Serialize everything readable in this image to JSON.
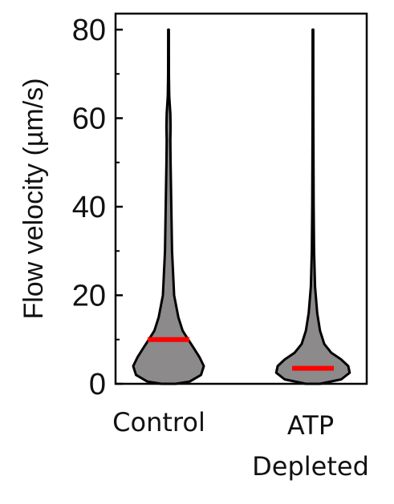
{
  "chart_data": {
    "type": "violin",
    "ylabel": "Flow velocity (µm/s)",
    "ylim": [
      0,
      80
    ],
    "yticks": [
      0,
      20,
      40,
      60,
      80
    ],
    "yticks_labels": [
      "0",
      "20",
      "40",
      "60",
      "80"
    ],
    "categories": [
      {
        "label_lines": [
          "Control"
        ]
      },
      {
        "label_lines": [
          "ATP",
          "Depleted"
        ]
      }
    ],
    "series": [
      {
        "median": 10,
        "max": 80,
        "profile": [
          [
            0,
            5.0
          ],
          [
            0.5,
            15.0
          ],
          [
            2,
            23.0
          ],
          [
            4,
            25.0
          ],
          [
            6,
            22.0
          ],
          [
            8,
            18.0
          ],
          [
            10,
            14.0
          ],
          [
            12,
            10.0
          ],
          [
            15,
            7.0
          ],
          [
            20,
            4.0
          ],
          [
            30,
            2.5
          ],
          [
            40,
            2.0
          ],
          [
            50,
            1.5
          ],
          [
            55,
            1.3
          ],
          [
            58,
            1.5
          ],
          [
            61,
            1.3
          ],
          [
            65,
            0.5
          ],
          [
            70,
            0.3
          ],
          [
            80,
            0.2
          ]
        ]
      },
      {
        "median": 3.5,
        "max": 80,
        "profile": [
          [
            0,
            5.0
          ],
          [
            1,
            20.0
          ],
          [
            2.5,
            26.0
          ],
          [
            4,
            25.0
          ],
          [
            5.5,
            20.0
          ],
          [
            7,
            13.0
          ],
          [
            9,
            8.0
          ],
          [
            12,
            5.0
          ],
          [
            16,
            3.0
          ],
          [
            22,
            1.5
          ],
          [
            30,
            0.8
          ],
          [
            40,
            0.5
          ],
          [
            60,
            0.3
          ],
          [
            80,
            0.2
          ]
        ]
      }
    ],
    "colors": {
      "fill": "#8c8a8a",
      "edge": "#000000",
      "median": "#ff0000"
    }
  }
}
